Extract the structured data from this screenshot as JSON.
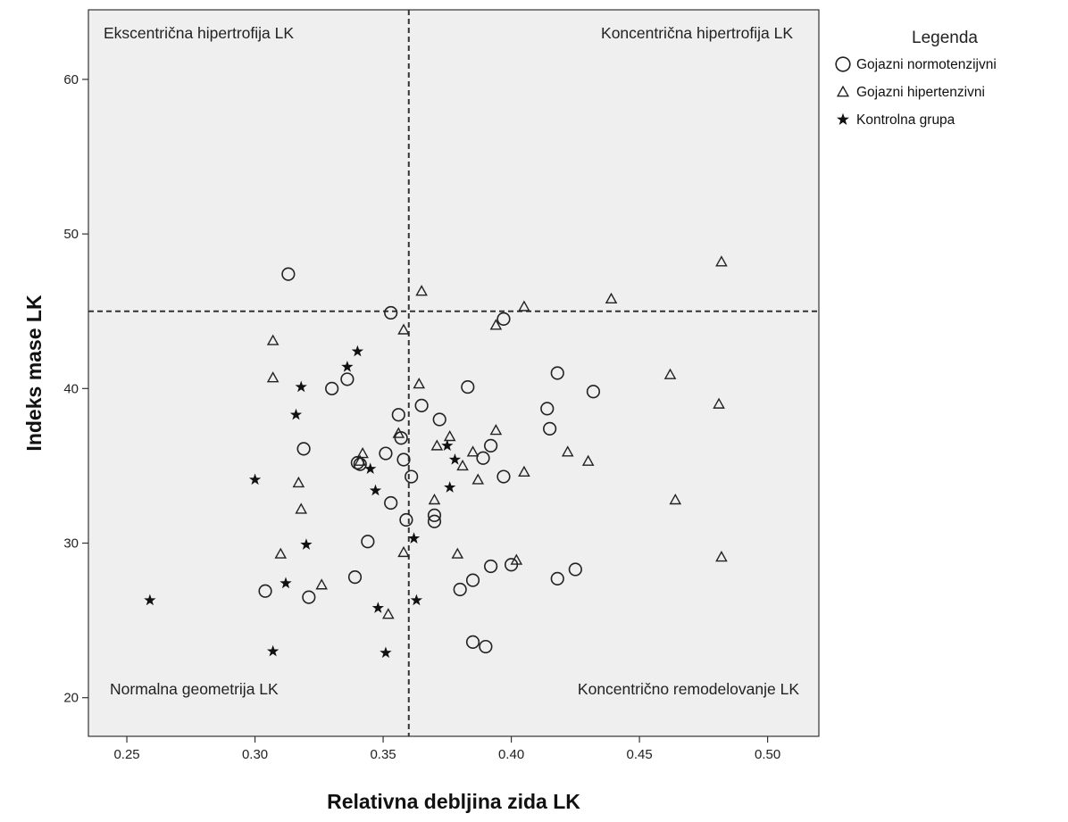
{
  "chart_data": {
    "type": "scatter",
    "xlabel": "Relativna debljina zida LK",
    "ylabel": "Indeks mase LK",
    "xlim": [
      0.235,
      0.52
    ],
    "ylim": [
      17.5,
      64.5
    ],
    "xticks": [
      0.25,
      0.3,
      0.35,
      0.4,
      0.45,
      0.5
    ],
    "xtick_labels": [
      "0.25",
      "0.30",
      "0.35",
      "0.40",
      "0.45",
      "0.50"
    ],
    "yticks": [
      20,
      30,
      40,
      50,
      60
    ],
    "ytick_labels": [
      "20",
      "30",
      "40",
      "50",
      "60"
    ],
    "grid": false,
    "background": "#efefef",
    "reference_lines": {
      "x": 0.36,
      "y": 45
    },
    "quadrant_labels": {
      "top_left": "Ekscentrična hipertrofija LK",
      "top_right": "Koncentrična hipertrofija LK",
      "bottom_left": "Normalna geometrija LK",
      "bottom_right": "Koncentrično remodelovanje LK"
    },
    "legend": {
      "title": "Legenda",
      "position": "right",
      "entries": [
        {
          "label": "Gojazni normotenzijvni",
          "marker": "circle"
        },
        {
          "label": "Gojazni hipertenzivni",
          "marker": "triangle"
        },
        {
          "label": "Kontrolna grupa",
          "marker": "star"
        }
      ]
    },
    "series": [
      {
        "name": "Gojazni normotenzijvni",
        "marker": "circle",
        "points": [
          [
            0.313,
            47.4
          ],
          [
            0.353,
            44.9
          ],
          [
            0.397,
            44.5
          ],
          [
            0.33,
            40.0
          ],
          [
            0.336,
            40.6
          ],
          [
            0.383,
            40.1
          ],
          [
            0.418,
            41.0
          ],
          [
            0.432,
            39.8
          ],
          [
            0.414,
            38.7
          ],
          [
            0.365,
            38.9
          ],
          [
            0.356,
            38.3
          ],
          [
            0.372,
            38.0
          ],
          [
            0.415,
            37.4
          ],
          [
            0.357,
            36.8
          ],
          [
            0.319,
            36.1
          ],
          [
            0.351,
            35.8
          ],
          [
            0.358,
            35.4
          ],
          [
            0.34,
            35.2
          ],
          [
            0.341,
            35.1
          ],
          [
            0.392,
            36.3
          ],
          [
            0.389,
            35.5
          ],
          [
            0.361,
            34.3
          ],
          [
            0.397,
            34.3
          ],
          [
            0.353,
            32.6
          ],
          [
            0.359,
            31.5
          ],
          [
            0.37,
            31.8
          ],
          [
            0.37,
            31.4
          ],
          [
            0.344,
            30.1
          ],
          [
            0.339,
            27.8
          ],
          [
            0.304,
            26.9
          ],
          [
            0.321,
            26.5
          ],
          [
            0.38,
            27.0
          ],
          [
            0.385,
            27.6
          ],
          [
            0.392,
            28.5
          ],
          [
            0.4,
            28.6
          ],
          [
            0.418,
            27.7
          ],
          [
            0.425,
            28.3
          ],
          [
            0.385,
            23.6
          ],
          [
            0.39,
            23.3
          ]
        ]
      },
      {
        "name": "Gojazni hipertenzivni",
        "marker": "triangle",
        "points": [
          [
            0.482,
            48.2
          ],
          [
            0.365,
            46.3
          ],
          [
            0.405,
            45.3
          ],
          [
            0.439,
            45.8
          ],
          [
            0.394,
            44.1
          ],
          [
            0.358,
            43.8
          ],
          [
            0.307,
            43.1
          ],
          [
            0.307,
            40.7
          ],
          [
            0.364,
            40.3
          ],
          [
            0.462,
            40.9
          ],
          [
            0.481,
            39.0
          ],
          [
            0.394,
            37.3
          ],
          [
            0.356,
            37.1
          ],
          [
            0.376,
            36.9
          ],
          [
            0.371,
            36.3
          ],
          [
            0.342,
            35.8
          ],
          [
            0.385,
            35.9
          ],
          [
            0.422,
            35.9
          ],
          [
            0.43,
            35.3
          ],
          [
            0.381,
            35.0
          ],
          [
            0.341,
            35.3
          ],
          [
            0.387,
            34.1
          ],
          [
            0.405,
            34.6
          ],
          [
            0.317,
            33.9
          ],
          [
            0.37,
            32.8
          ],
          [
            0.464,
            32.8
          ],
          [
            0.318,
            32.2
          ],
          [
            0.31,
            29.3
          ],
          [
            0.358,
            29.4
          ],
          [
            0.379,
            29.3
          ],
          [
            0.402,
            28.9
          ],
          [
            0.482,
            29.1
          ],
          [
            0.326,
            27.3
          ],
          [
            0.352,
            25.4
          ]
        ]
      },
      {
        "name": "Kontrolna grupa",
        "marker": "star",
        "points": [
          [
            0.34,
            42.4
          ],
          [
            0.336,
            41.4
          ],
          [
            0.318,
            40.1
          ],
          [
            0.316,
            38.3
          ],
          [
            0.3,
            34.1
          ],
          [
            0.375,
            36.3
          ],
          [
            0.378,
            35.4
          ],
          [
            0.345,
            34.8
          ],
          [
            0.347,
            33.4
          ],
          [
            0.376,
            33.6
          ],
          [
            0.32,
            29.9
          ],
          [
            0.362,
            30.3
          ],
          [
            0.312,
            27.4
          ],
          [
            0.259,
            26.3
          ],
          [
            0.348,
            25.8
          ],
          [
            0.363,
            26.3
          ],
          [
            0.307,
            23.0
          ],
          [
            0.351,
            22.9
          ]
        ]
      }
    ]
  }
}
